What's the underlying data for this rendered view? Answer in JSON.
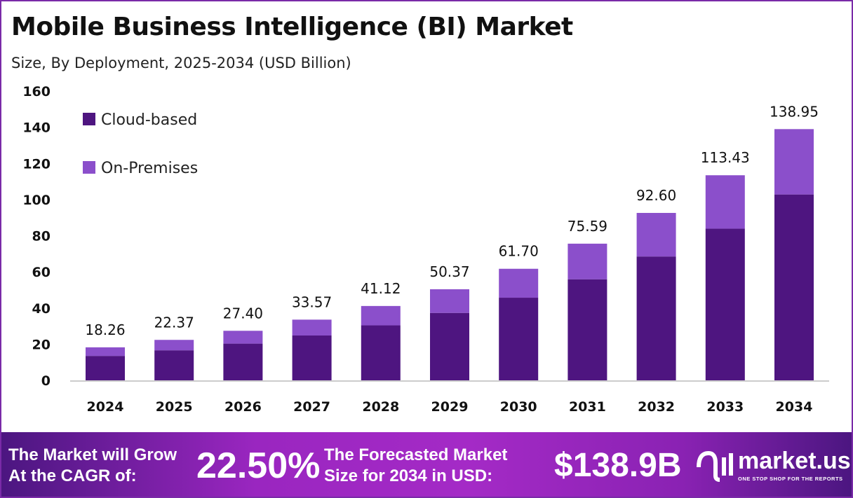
{
  "title": "Mobile Business Intelligence (BI) Market",
  "subtitle": "Size, By Deployment, 2025-2034 (USD Billion)",
  "chart_data": {
    "type": "bar",
    "stacked": true,
    "categories": [
      "2024",
      "2025",
      "2026",
      "2027",
      "2028",
      "2029",
      "2030",
      "2031",
      "2032",
      "2033",
      "2034"
    ],
    "series": [
      {
        "name": "Cloud-based",
        "color": "#4e1580",
        "values": [
          13.5,
          16.6,
          20.3,
          24.8,
          30.4,
          37.3,
          45.7,
          55.9,
          68.5,
          83.9,
          102.8
        ]
      },
      {
        "name": "On-Premises",
        "color": "#8b4fcb",
        "values": [
          4.76,
          5.77,
          7.1,
          8.77,
          10.72,
          13.07,
          16.0,
          19.69,
          24.1,
          29.53,
          36.15
        ]
      }
    ],
    "totals": [
      "18.26",
      "22.37",
      "27.40",
      "33.57",
      "41.12",
      "50.37",
      "61.70",
      "75.59",
      "92.60",
      "113.43",
      "138.95"
    ],
    "ylim": [
      0,
      160
    ],
    "yticks": [
      "0",
      "20",
      "40",
      "60",
      "80",
      "100",
      "120",
      "140",
      "160"
    ],
    "legend_position": "top-left",
    "grid": false
  },
  "footer": {
    "cagr_text_line1": "The Market will Grow",
    "cagr_text_line2": "At the CAGR of:",
    "cagr_value": "22.50%",
    "size_text_line1": "The Forecasted Market",
    "size_text_line2": "Size for 2034 in USD:",
    "size_value": "$138.9B",
    "brand": "market.us",
    "tagline": "ONE STOP SHOP FOR THE REPORTS"
  }
}
